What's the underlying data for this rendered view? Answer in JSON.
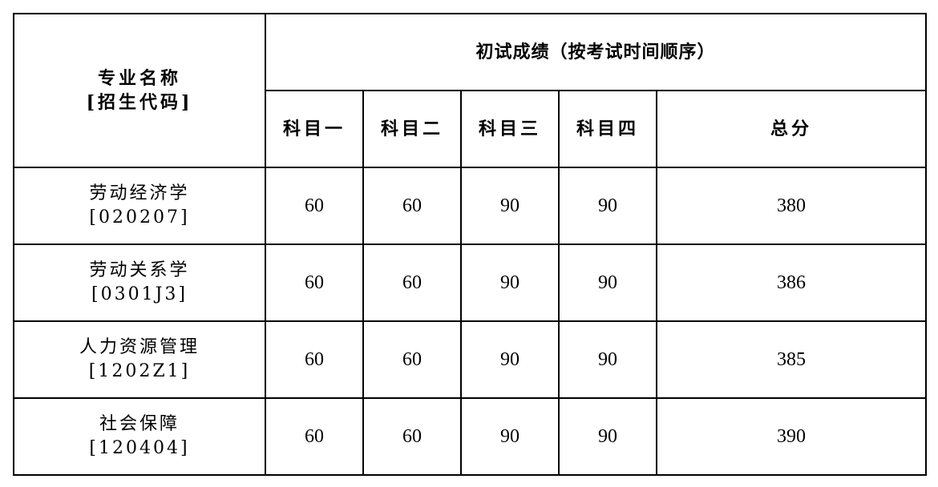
{
  "header": {
    "major_label": "专业名称",
    "code_label": "[招生代码]",
    "group_title": "初试成绩（按考试时间顺序）",
    "columns": [
      "科目一",
      "科目二",
      "科目三",
      "科目四",
      "总分"
    ]
  },
  "rows": [
    {
      "name": "劳动经济学",
      "code": "[020207]",
      "scores": [
        "60",
        "60",
        "90",
        "90",
        "380"
      ]
    },
    {
      "name": "劳动关系学",
      "code": "[0301J3]",
      "scores": [
        "60",
        "60",
        "90",
        "90",
        "386"
      ]
    },
    {
      "name": "人力资源管理",
      "code": "[1202Z1]",
      "scores": [
        "60",
        "60",
        "90",
        "90",
        "385"
      ]
    },
    {
      "name": "社会保障",
      "code": "[120404]",
      "scores": [
        "60",
        "60",
        "90",
        "90",
        "390"
      ]
    }
  ]
}
